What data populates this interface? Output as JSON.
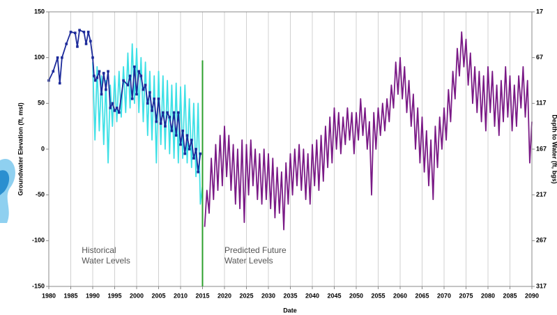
{
  "chart_data": {
    "type": "line",
    "x_label": "Date",
    "y_label": "Groundwater Elevation (ft, msl)",
    "y2_label": "Depth to Water (ft, bgs)",
    "xlim": [
      1980,
      2090
    ],
    "xticks": [
      1980,
      1985,
      1990,
      1995,
      2000,
      2005,
      2010,
      2015,
      2020,
      2025,
      2030,
      2035,
      2040,
      2045,
      2050,
      2055,
      2060,
      2065,
      2070,
      2075,
      2080,
      2085,
      2090
    ],
    "ylim": [
      -150,
      150
    ],
    "yticks": [
      -150,
      -100,
      -50,
      0,
      50,
      100,
      150
    ],
    "y2lim": [
      317,
      17
    ],
    "y2ticks": [
      317,
      267,
      217,
      167,
      117,
      67,
      17
    ],
    "xgrid": true,
    "vline": {
      "x": 2015,
      "color": "#2ca02c"
    },
    "annotations": [
      {
        "lines": [
          "Historical",
          "Water Levels"
        ],
        "x": 1987.5,
        "y": -125
      },
      {
        "lines": [
          "Predicted Future",
          "Water Levels"
        ],
        "x": 2020,
        "y": -125
      }
    ],
    "series": [
      {
        "color": "#3fe0e6",
        "x": [
          1990,
          1990.5,
          1991,
          1991.5,
          1992,
          1992.5,
          1993,
          1993.5,
          1994,
          1994.5,
          1995,
          1995.5,
          1996,
          1996.5,
          1997,
          1997.5,
          1998,
          1998.5,
          1999,
          1999.5,
          2000,
          2000.5,
          2001,
          2001.5,
          2002,
          2002.5,
          2003,
          2003.5,
          2004,
          2004.5,
          2005,
          2005.5,
          2006,
          2006.5,
          2007,
          2007.5,
          2008,
          2008.5,
          2009,
          2009.5,
          2010,
          2010.5,
          2011,
          2011.5,
          2012,
          2012.5,
          2013,
          2013.5,
          2014,
          2014.5,
          2015
        ],
        "values": [
          95,
          10,
          90,
          20,
          80,
          5,
          75,
          -15,
          70,
          25,
          80,
          30,
          85,
          35,
          90,
          40,
          105,
          45,
          115,
          50,
          110,
          40,
          100,
          30,
          95,
          15,
          85,
          10,
          80,
          -15,
          85,
          5,
          80,
          0,
          75,
          -5,
          70,
          -10,
          72,
          -15,
          68,
          -10,
          70,
          -15,
          55,
          -20,
          50,
          -30,
          50,
          -60,
          -40
        ]
      },
      {
        "color": "#1c2a9a",
        "marker": "square",
        "x": [
          1980,
          1981,
          1982,
          1982.5,
          1983,
          1984,
          1985,
          1986,
          1986.5,
          1987,
          1988,
          1988.5,
          1989,
          1989.5,
          1990,
          1990.3,
          1990.6,
          1991,
          1991.5,
          1992,
          1992.5,
          1993,
          1993.5,
          1994,
          1994.5,
          1995,
          1995.5,
          1996,
          1997,
          1998,
          1998.5,
          1999,
          1999.5,
          2000,
          2000.5,
          2001,
          2001.5,
          2002,
          2002.5,
          2003,
          2003.5,
          2004,
          2004.5,
          2005,
          2005.5,
          2006,
          2006.5,
          2007,
          2007.5,
          2008,
          2008.5,
          2009,
          2009.5,
          2010,
          2010.5,
          2011,
          2011.5,
          2012,
          2012.5,
          2013,
          2013.5,
          2014,
          2014.5
        ],
        "values": [
          75,
          85,
          100,
          72,
          100,
          115,
          128,
          127,
          112,
          130,
          128,
          115,
          128,
          118,
          100,
          80,
          75,
          78,
          85,
          60,
          83,
          65,
          85,
          45,
          50,
          42,
          45,
          40,
          75,
          70,
          80,
          55,
          90,
          60,
          85,
          80,
          65,
          70,
          50,
          62,
          42,
          55,
          30,
          55,
          28,
          40,
          25,
          40,
          35,
          20,
          40,
          15,
          40,
          5,
          20,
          -5,
          15,
          0,
          10,
          -10,
          0,
          -25,
          -5
        ]
      },
      {
        "color": "#7a1a86",
        "x": [
          2015.5,
          2016,
          2016.5,
          2017,
          2017.5,
          2018,
          2018.5,
          2019,
          2019.5,
          2020,
          2020.5,
          2021,
          2021.5,
          2022,
          2022.5,
          2023,
          2023.5,
          2024,
          2024.5,
          2025,
          2025.5,
          2026,
          2026.5,
          2027,
          2027.5,
          2028,
          2028.5,
          2029,
          2029.5,
          2030,
          2030.5,
          2031,
          2031.5,
          2032,
          2032.5,
          2033,
          2033.5,
          2034,
          2034.5,
          2035,
          2035.5,
          2036,
          2036.5,
          2037,
          2037.5,
          2038,
          2038.5,
          2039,
          2039.5,
          2040,
          2040.5,
          2041,
          2041.5,
          2042,
          2042.5,
          2043,
          2043.5,
          2044,
          2044.5,
          2045,
          2045.5,
          2046,
          2046.5,
          2047,
          2047.5,
          2048,
          2048.5,
          2049,
          2049.5,
          2050,
          2050.5,
          2051,
          2051.5,
          2052,
          2052.5,
          2053,
          2053.5,
          2054,
          2054.5,
          2055,
          2055.5,
          2056,
          2056.5,
          2057,
          2057.5,
          2058,
          2058.5,
          2059,
          2059.5,
          2060,
          2060.5,
          2061,
          2061.5,
          2062,
          2062.5,
          2063,
          2063.5,
          2064,
          2064.5,
          2065,
          2065.5,
          2066,
          2066.5,
          2067,
          2067.5,
          2068,
          2068.5,
          2069,
          2069.5,
          2070,
          2070.5,
          2071,
          2071.5,
          2072,
          2072.5,
          2073,
          2073.5,
          2074,
          2074.5,
          2075,
          2075.5,
          2076,
          2076.5,
          2077,
          2077.5,
          2078,
          2078.5,
          2079,
          2079.5,
          2080,
          2080.5,
          2081,
          2081.5,
          2082,
          2082.5,
          2083,
          2083.5,
          2084,
          2084.5,
          2085,
          2085.5,
          2086,
          2086.5,
          2087,
          2087.5,
          2088,
          2088.5,
          2089,
          2089.5,
          2090
        ],
        "values": [
          -85,
          -45,
          -70,
          -10,
          -55,
          5,
          -45,
          15,
          -40,
          25,
          -30,
          15,
          -45,
          5,
          -60,
          0,
          -65,
          10,
          -80,
          5,
          -50,
          10,
          -40,
          0,
          -55,
          -5,
          -60,
          0,
          -55,
          -5,
          -65,
          -10,
          -75,
          -20,
          -70,
          -25,
          -88,
          -15,
          -60,
          -5,
          -50,
          0,
          -40,
          5,
          -45,
          0,
          -55,
          -5,
          -60,
          5,
          -40,
          10,
          -45,
          15,
          -35,
          25,
          -20,
          35,
          -15,
          45,
          0,
          40,
          -5,
          35,
          5,
          45,
          10,
          40,
          -5,
          40,
          10,
          55,
          15,
          45,
          0,
          30,
          -50,
          40,
          0,
          45,
          15,
          50,
          20,
          55,
          30,
          70,
          45,
          95,
          60,
          100,
          55,
          90,
          40,
          75,
          25,
          60,
          0,
          45,
          -15,
          35,
          -25,
          20,
          -40,
          10,
          -55,
          25,
          -20,
          35,
          0,
          45,
          10,
          65,
          30,
          85,
          55,
          110,
          80,
          128,
          90,
          120,
          70,
          105,
          50,
          90,
          40,
          85,
          30,
          80,
          20,
          90,
          40,
          85,
          25,
          70,
          15,
          75,
          30,
          90,
          35,
          80,
          20,
          70,
          25,
          80,
          45,
          90,
          35,
          75,
          -15,
          30
        ]
      }
    ]
  }
}
